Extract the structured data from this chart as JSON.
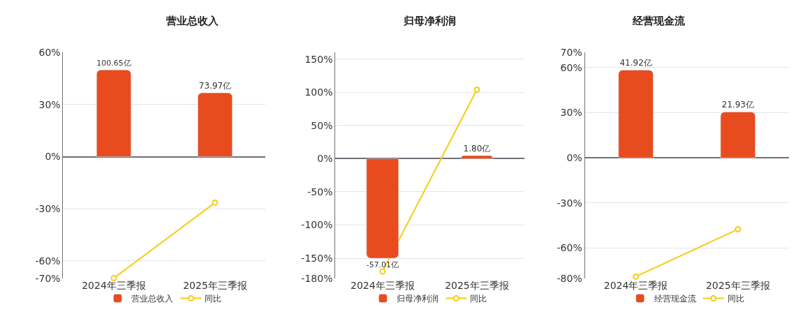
{
  "chart_data": [
    {
      "type": "bar",
      "title": "营业总收入",
      "categories": [
        "2024年三季报",
        "2025年三季报"
      ],
      "series": [
        {
          "name": "营业总收入",
          "axis": "y2",
          "color": "#e84c1e",
          "values": [
            100.65,
            73.97
          ],
          "value_labels": [
            "100.65亿",
            "73.97亿"
          ]
        },
        {
          "name": "同比",
          "type": "line",
          "color": "#f5cc14",
          "marker": "circle",
          "values": [
            -70,
            -26.5
          ]
        }
      ],
      "ylim": [
        -70,
        60
      ],
      "yticks": [
        {
          "value": -70,
          "label": "-70%"
        },
        {
          "value": -60,
          "label": "-60%"
        },
        {
          "value": -30,
          "label": "-30%"
        },
        {
          "value": 0,
          "label": "0%"
        },
        {
          "value": 30,
          "label": "30%"
        },
        {
          "value": 60,
          "label": "60%"
        }
      ],
      "grid": "y",
      "legend": "bottom"
    },
    {
      "type": "bar",
      "title": "归母净利润",
      "categories": [
        "2024年三季报",
        "2025年三季报"
      ],
      "series": [
        {
          "name": "归母净利润",
          "axis": "y2",
          "color": "#e84c1e",
          "values": [
            -57.01,
            1.8
          ],
          "value_labels": [
            "-57.01亿",
            "1.80亿"
          ]
        },
        {
          "name": "同比",
          "type": "line",
          "color": "#f5cc14",
          "marker": "circle",
          "values": [
            -170,
            104
          ]
        }
      ],
      "ylim": [
        -180,
        160
      ],
      "yticks": [
        {
          "value": -180,
          "label": "-180%"
        },
        {
          "value": -150,
          "label": "-150%"
        },
        {
          "value": -100,
          "label": "-100%"
        },
        {
          "value": -50,
          "label": "-50%"
        },
        {
          "value": 0,
          "label": "0%"
        },
        {
          "value": 50,
          "label": "50%"
        },
        {
          "value": 100,
          "label": "100%"
        },
        {
          "value": 150,
          "label": "150%"
        }
      ],
      "grid": "y",
      "legend": "bottom"
    },
    {
      "type": "bar",
      "title": "经营现金流",
      "categories": [
        "2024年三季报",
        "2025年三季报"
      ],
      "series": [
        {
          "name": "经营现金流",
          "axis": "y2",
          "color": "#e84c1e",
          "values": [
            41.92,
            21.93
          ],
          "value_labels": [
            "41.92亿",
            "21.93亿"
          ]
        },
        {
          "name": "同比",
          "type": "line",
          "color": "#f5cc14",
          "marker": "circle",
          "values": [
            -79,
            -47.5
          ]
        }
      ],
      "ylim": [
        -80,
        70
      ],
      "yticks": [
        {
          "value": -80,
          "label": "-80%"
        },
        {
          "value": -60,
          "label": "-60%"
        },
        {
          "value": -30,
          "label": "-30%"
        },
        {
          "value": 0,
          "label": "0%"
        },
        {
          "value": 30,
          "label": "30%"
        },
        {
          "value": 60,
          "label": "60%"
        },
        {
          "value": 70,
          "label": "70%"
        }
      ],
      "grid": "y",
      "legend": "bottom"
    }
  ]
}
